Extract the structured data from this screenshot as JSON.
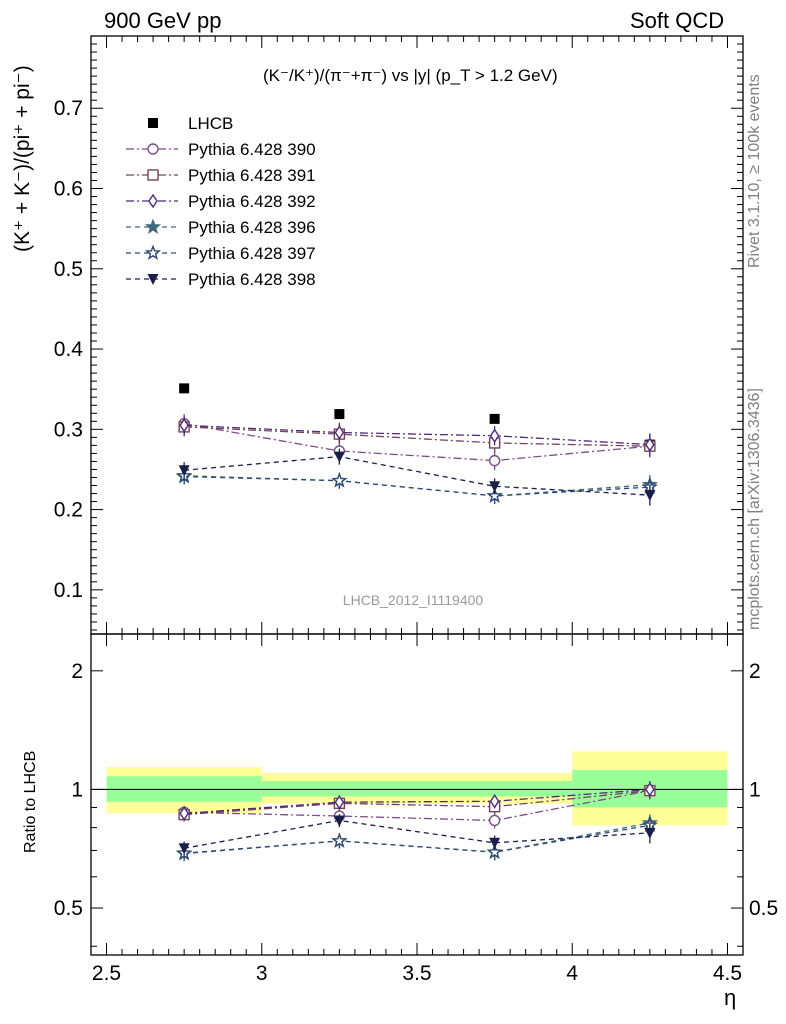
{
  "header": {
    "left": "900 GeV pp",
    "right": "Soft QCD"
  },
  "side_labels": {
    "top": "Rivet 3.1.10, ≥ 100k events",
    "bottom": "mcplots.cern.ch [arXiv:1306.3436]"
  },
  "watermark": "LHCB_2012_I1119400",
  "chart_data": [
    {
      "type": "scatter",
      "title": "(K⁻/K⁺)/(π⁻+π⁻) vs |y| (p_T > 1.2 GeV)",
      "ylabel": "(K⁺ + K⁻)/(pi⁺ + pi⁻)",
      "xlabel": "η",
      "xlim": [
        2.45,
        4.55
      ],
      "ylim": [
        0.045,
        0.79
      ],
      "x_ticks": [
        "2.5",
        "3",
        "3.5",
        "4",
        "4.5"
      ],
      "y_ticks": [
        "0.1",
        "0.2",
        "0.3",
        "0.4",
        "0.5",
        "0.6",
        "0.7"
      ],
      "x": [
        2.75,
        3.25,
        3.75,
        4.25
      ],
      "legend_position": "top-left",
      "series": [
        {
          "name": "LHCB",
          "values": [
            0.351,
            0.319,
            0.313,
            0.281
          ],
          "marker": "filled-square",
          "color": "#000000"
        },
        {
          "name": "Pythia 6.428 390",
          "values": [
            0.307,
            0.273,
            0.261,
            0.279
          ],
          "errors": [
            0.012,
            0.012,
            0.012,
            0.014
          ],
          "marker": "open-circle",
          "color": "#7a4e86",
          "dash": "dashdot"
        },
        {
          "name": "Pythia 6.428 391",
          "values": [
            0.303,
            0.294,
            0.283,
            0.279
          ],
          "errors": [
            0.012,
            0.012,
            0.012,
            0.014
          ],
          "marker": "open-square",
          "color": "#734455",
          "dash": "dashdot"
        },
        {
          "name": "Pythia 6.428 392",
          "values": [
            0.305,
            0.296,
            0.292,
            0.281
          ],
          "errors": [
            0.012,
            0.012,
            0.012,
            0.014
          ],
          "marker": "open-diamond",
          "color": "#4a2a7a",
          "dash": "dashdot"
        },
        {
          "name": "Pythia 6.428 396",
          "values": [
            0.241,
            0.236,
            0.217,
            0.231
          ],
          "errors": [
            0.01,
            0.01,
            0.01,
            0.012
          ],
          "marker": "filled-star",
          "color": "#3d6a7e",
          "dash": "dashed"
        },
        {
          "name": "Pythia 6.428 397",
          "values": [
            0.242,
            0.236,
            0.217,
            0.228
          ],
          "errors": [
            0.01,
            0.01,
            0.01,
            0.012
          ],
          "marker": "open-star",
          "color": "#2e4a72",
          "dash": "dashed"
        },
        {
          "name": "Pythia 6.428 398",
          "values": [
            0.249,
            0.266,
            0.229,
            0.218
          ],
          "errors": [
            0.01,
            0.01,
            0.01,
            0.013
          ],
          "marker": "filled-triangle-down",
          "color": "#1a1f4a",
          "dash": "dashed"
        }
      ]
    },
    {
      "type": "scatter",
      "ylabel": "Ratio to LHCB",
      "xlabel": "η",
      "xlim": [
        2.45,
        4.55
      ],
      "ylim": [
        0.38,
        2.48
      ],
      "y_ticks": [
        "0.5",
        "1",
        "2"
      ],
      "y_scale": "log",
      "x": [
        2.75,
        3.25,
        3.75,
        4.25
      ],
      "bands": [
        {
          "x": [
            2.5,
            3.0
          ],
          "green": [
            0.93,
            1.08
          ],
          "yellow": [
            0.87,
            1.14
          ]
        },
        {
          "x": [
            3.0,
            3.5
          ],
          "green": [
            0.96,
            1.05
          ],
          "yellow": [
            0.92,
            1.1
          ]
        },
        {
          "x": [
            3.5,
            4.0
          ],
          "green": [
            0.96,
            1.05
          ],
          "yellow": [
            0.92,
            1.1
          ]
        },
        {
          "x": [
            4.0,
            4.5
          ],
          "green": [
            0.9,
            1.12
          ],
          "yellow": [
            0.81,
            1.25
          ]
        }
      ],
      "series": [
        {
          "name": "Pythia 6.428 390",
          "values": [
            0.875,
            0.856,
            0.834,
            0.993
          ]
        },
        {
          "name": "Pythia 6.428 391",
          "values": [
            0.863,
            0.922,
            0.904,
            0.993
          ]
        },
        {
          "name": "Pythia 6.428 392",
          "values": [
            0.869,
            0.928,
            0.933,
            1.0
          ]
        },
        {
          "name": "Pythia 6.428 396",
          "values": [
            0.687,
            0.74,
            0.693,
            0.822
          ]
        },
        {
          "name": "Pythia 6.428 397",
          "values": [
            0.689,
            0.74,
            0.693,
            0.811
          ]
        },
        {
          "name": "Pythia 6.428 398",
          "values": [
            0.709,
            0.834,
            0.732,
            0.776
          ]
        }
      ]
    }
  ]
}
